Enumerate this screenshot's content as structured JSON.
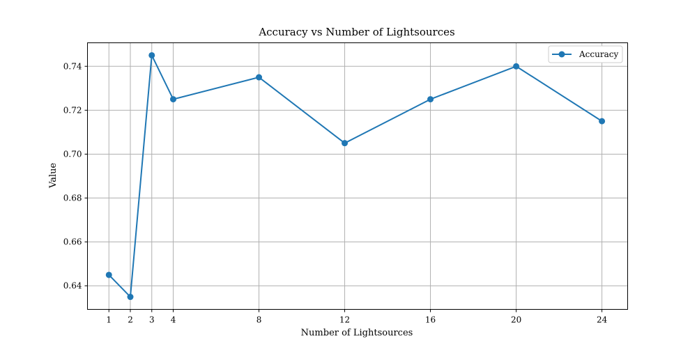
{
  "chart_data": {
    "type": "line",
    "title": "Accuracy vs Number of Lightsources",
    "xlabel": "Number of Lightsources",
    "ylabel": "Value",
    "xlim": [
      0,
      25.2
    ],
    "ylim": [
      0.6293,
      0.7507
    ],
    "xticks": [
      1,
      2,
      3,
      4,
      8,
      12,
      16,
      20,
      24
    ],
    "yticks": [
      0.64,
      0.66,
      0.68,
      0.7,
      0.72,
      0.74
    ],
    "ytick_labels": [
      "0.64",
      "0.66",
      "0.68",
      "0.70",
      "0.72",
      "0.74"
    ],
    "grid": true,
    "legend_position": "top-right",
    "x": [
      1,
      2,
      3,
      4,
      8,
      12,
      16,
      20,
      24
    ],
    "series": [
      {
        "name": "Accuracy",
        "color": "#1f77b4",
        "marker": "circle",
        "values": [
          0.645,
          0.635,
          0.745,
          0.725,
          0.735,
          0.705,
          0.725,
          0.74,
          0.715
        ]
      }
    ]
  }
}
